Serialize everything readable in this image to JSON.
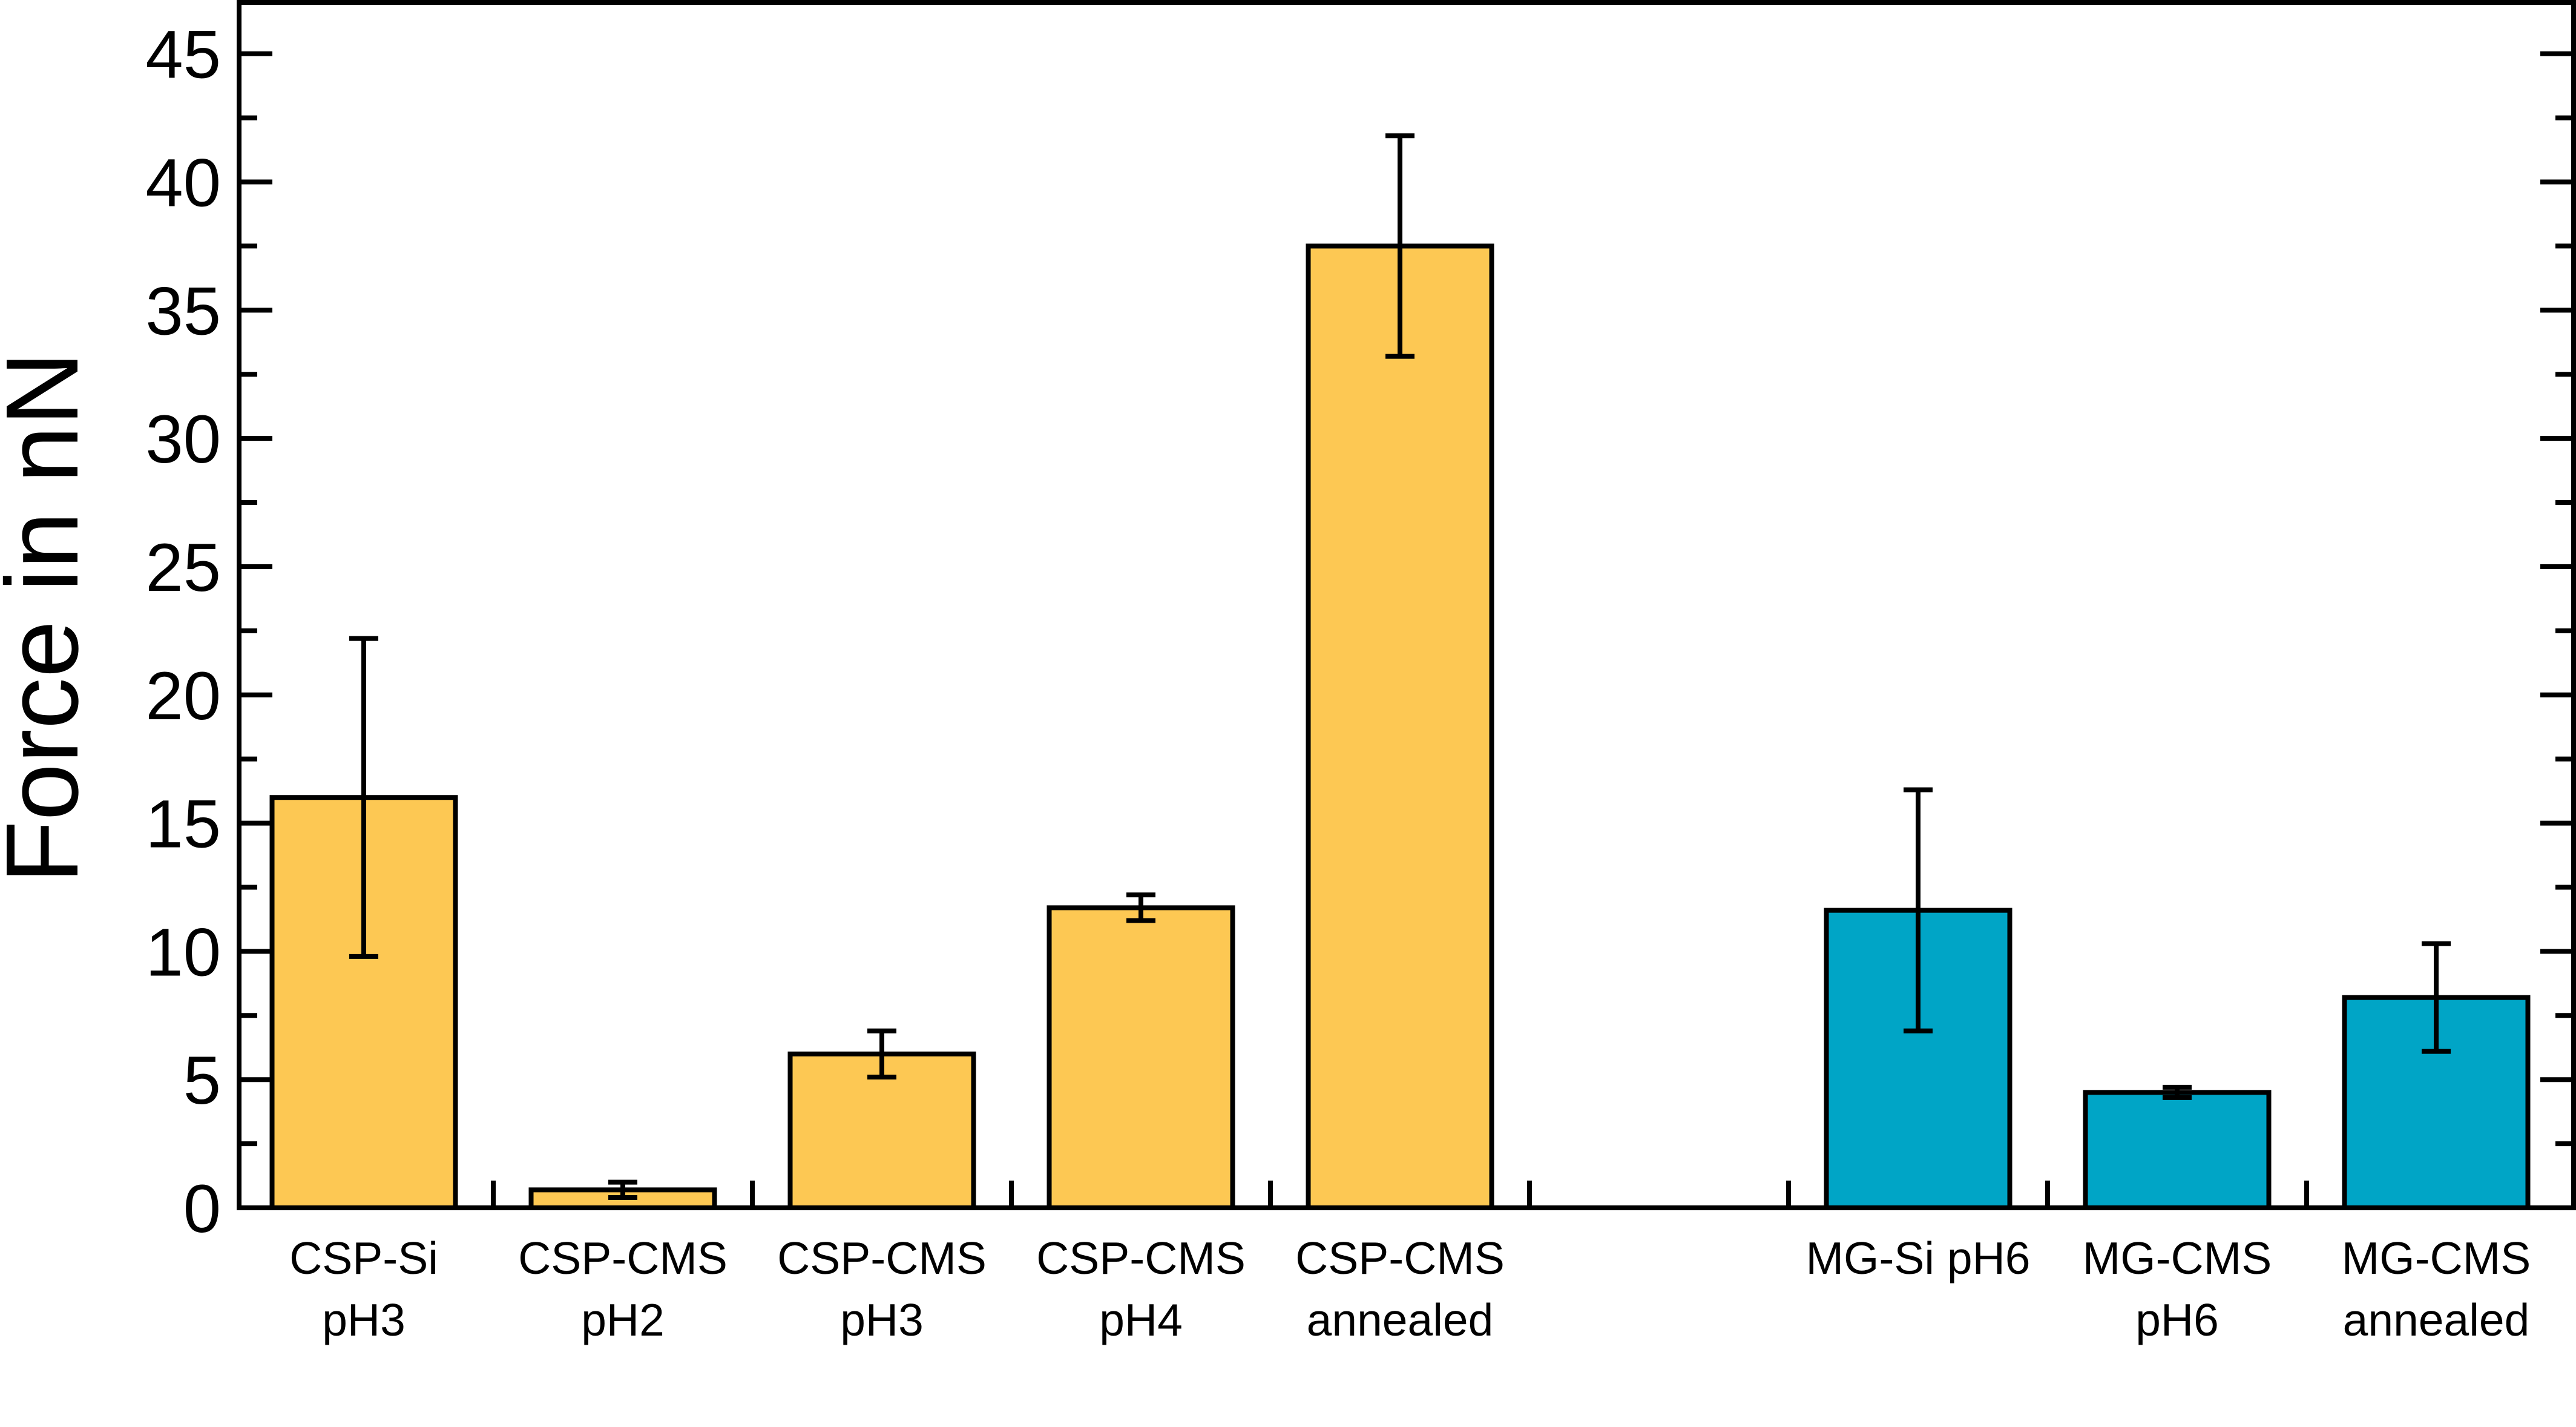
{
  "chart_data": {
    "type": "bar",
    "title": "",
    "xlabel": "",
    "ylabel": "Force in nN",
    "ylim": [
      0,
      47
    ],
    "yticks": [
      0,
      5,
      10,
      15,
      20,
      25,
      30,
      35,
      40,
      45
    ],
    "grid": false,
    "legend": "none",
    "categories": [
      {
        "lines": [
          "CSP-Si",
          "pH3"
        ],
        "value": 16.0,
        "error": 6.2,
        "color": "#FDC853"
      },
      {
        "lines": [
          "CSP-CMS",
          "pH2"
        ],
        "value": 0.7,
        "error": 0.3,
        "color": "#FDC853"
      },
      {
        "lines": [
          "CSP-CMS",
          "pH3"
        ],
        "value": 6.0,
        "error": 0.9,
        "color": "#FDC853"
      },
      {
        "lines": [
          "CSP-CMS",
          "pH4"
        ],
        "value": 11.7,
        "error": 0.5,
        "color": "#FDC853"
      },
      {
        "lines": [
          "CSP-CMS",
          "annealed"
        ],
        "value": 37.5,
        "error": 4.3,
        "color": "#FDC853"
      },
      {
        "lines": [
          "MG-Si pH6"
        ],
        "value": 11.6,
        "error": 4.7,
        "color": "#00A5C6"
      },
      {
        "lines": [
          "MG-CMS",
          "pH6"
        ],
        "value": 4.5,
        "error": 0.2,
        "color": "#00A5C6"
      },
      {
        "lines": [
          "MG-CMS",
          "annealed"
        ],
        "value": 8.2,
        "error": 2.1,
        "color": "#00A5C6"
      }
    ]
  }
}
